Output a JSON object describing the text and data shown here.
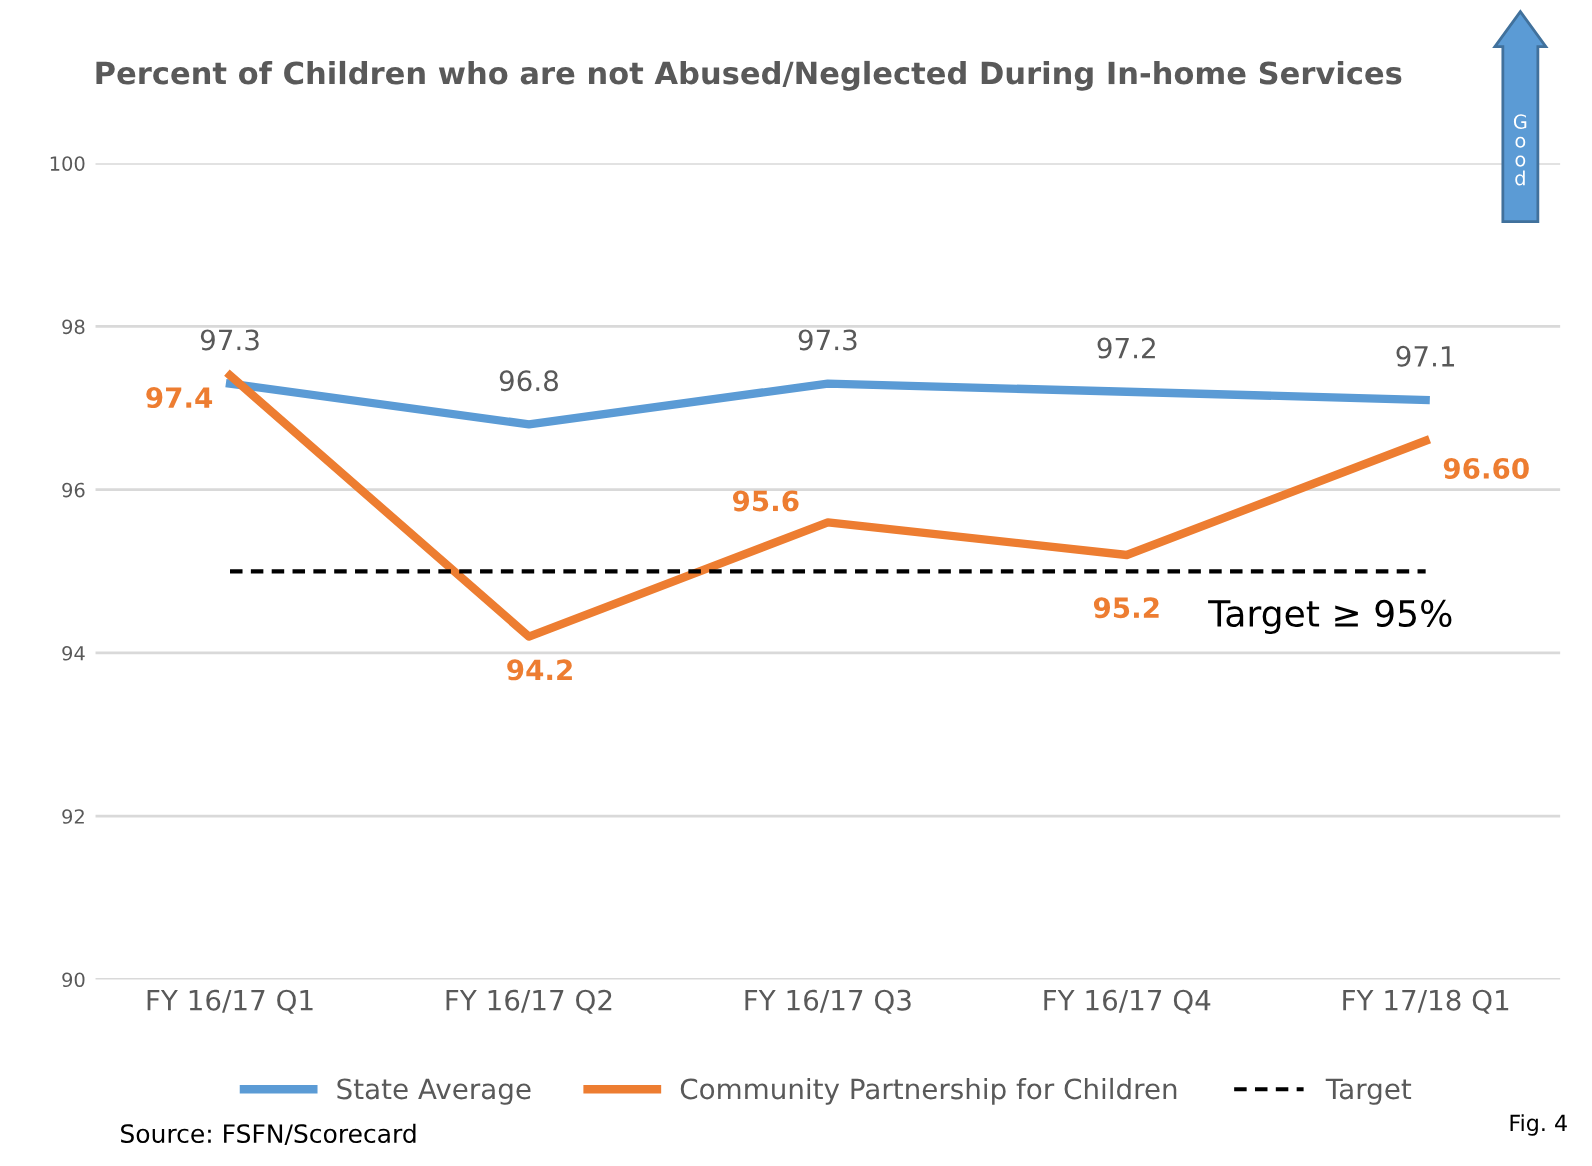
{
  "chart_data": {
    "type": "line",
    "title": "Percent of Children who are not Abused/Neglected During In-home Services",
    "categories": [
      "FY 16/17 Q1",
      "FY 16/17 Q2",
      "FY 16/17 Q3",
      "FY 16/17 Q4",
      "FY 17/18 Q1"
    ],
    "series": [
      {
        "name": "State Average",
        "color": "#5b9bd5",
        "values": [
          97.3,
          96.8,
          97.3,
          97.2,
          97.1
        ],
        "value_labels": [
          "97.3",
          "96.8",
          "97.3",
          "97.2",
          "97.1"
        ]
      },
      {
        "name": "Community Partnership for Children",
        "color": "#ed7d31",
        "values": [
          97.4,
          94.2,
          95.6,
          95.2,
          96.6
        ],
        "value_labels": [
          "97.4",
          "94.2",
          "95.6",
          "95.2",
          "96.60"
        ]
      },
      {
        "name": "Target",
        "color": "#000000",
        "values": [
          95,
          95,
          95,
          95,
          95
        ],
        "line_style": "dashed"
      }
    ],
    "ylim": [
      90,
      100
    ],
    "yticks": [
      90,
      92,
      94,
      96,
      98,
      100
    ],
    "grid": "y",
    "legend": "bottom",
    "marker": "none",
    "annotations": [
      {
        "text": "Target ≥ 95%",
        "x": "FY 17/18 Q1",
        "y": 95
      },
      "Source: FSFN/Scorecard",
      "Fig. 4",
      "Good"
    ]
  }
}
